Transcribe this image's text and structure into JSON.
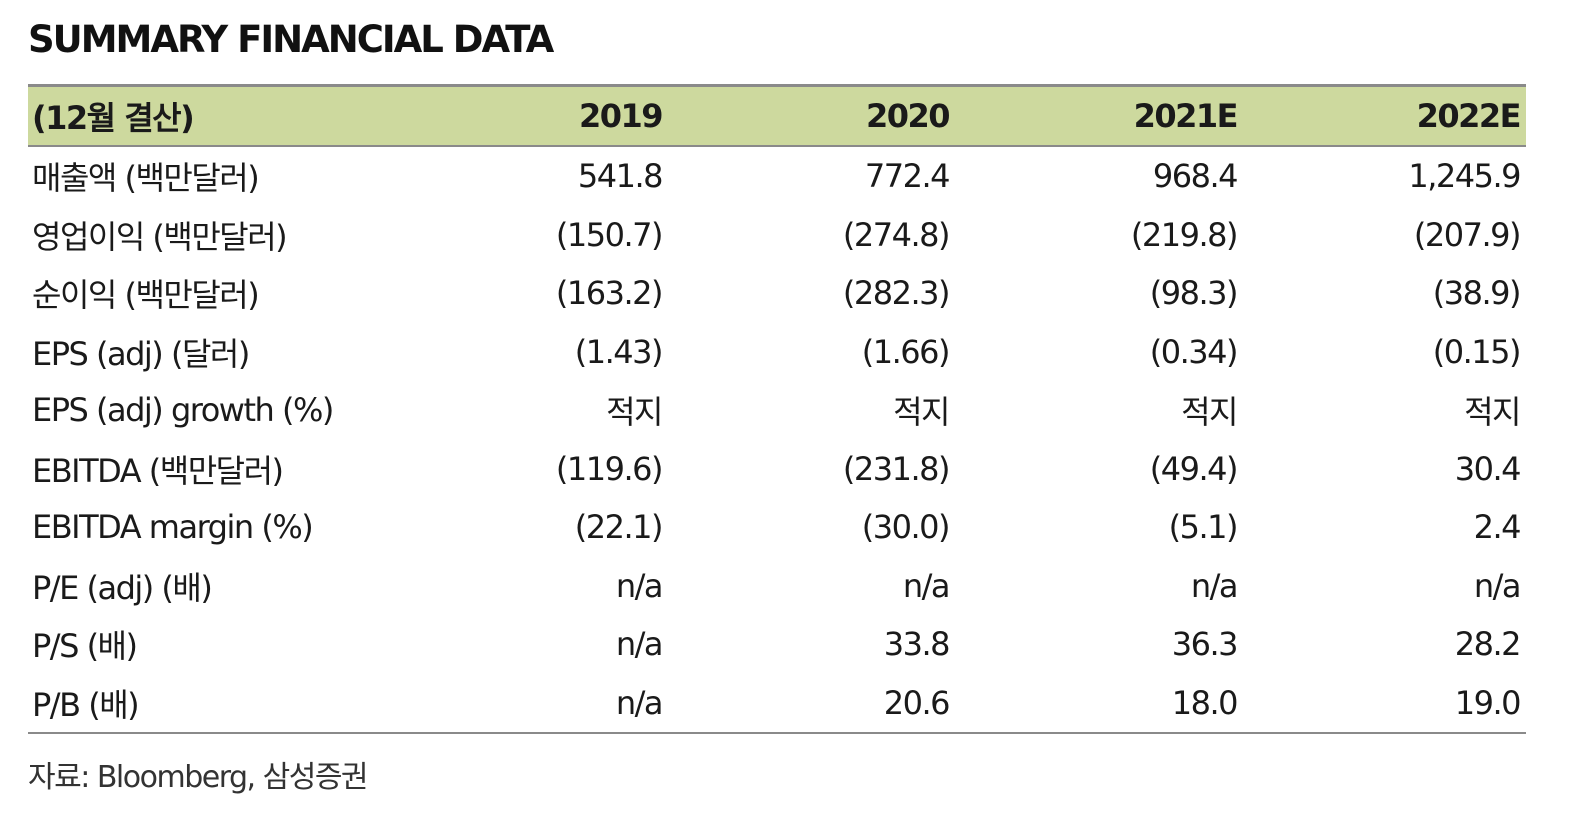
{
  "title": "SUMMARY FINANCIAL DATA",
  "table": {
    "columns": [
      "(12월 결산)",
      "2019",
      "2020",
      "2021E",
      "2022E"
    ],
    "rows": [
      {
        "label": "매출액 (백만달러)",
        "values": [
          "541.8",
          "772.4",
          "968.4",
          "1,245.9"
        ]
      },
      {
        "label": "영업이익 (백만달러)",
        "values": [
          "(150.7)",
          "(274.8)",
          "(219.8)",
          "(207.9)"
        ]
      },
      {
        "label": "순이익 (백만달러)",
        "values": [
          "(163.2)",
          "(282.3)",
          "(98.3)",
          "(38.9)"
        ]
      },
      {
        "label": "EPS (adj) (달러)",
        "values": [
          "(1.43)",
          "(1.66)",
          "(0.34)",
          "(0.15)"
        ]
      },
      {
        "label": "EPS (adj) growth (%)",
        "values": [
          "적지",
          "적지",
          "적지",
          "적지"
        ]
      },
      {
        "label": "EBITDA (백만달러)",
        "values": [
          "(119.6)",
          "(231.8)",
          "(49.4)",
          "30.4"
        ]
      },
      {
        "label": "EBITDA margin (%)",
        "values": [
          "(22.1)",
          "(30.0)",
          "(5.1)",
          "2.4"
        ]
      },
      {
        "label": "P/E (adj) (배)",
        "values": [
          "n/a",
          "n/a",
          "n/a",
          "n/a"
        ]
      },
      {
        "label": "P/S (배)",
        "values": [
          "n/a",
          "33.8",
          "36.3",
          "28.2"
        ]
      },
      {
        "label": "P/B (배)",
        "values": [
          "n/a",
          "20.6",
          "18.0",
          "19.0"
        ]
      }
    ]
  },
  "source": "자료: Bloomberg, 삼성증권",
  "colors": {
    "header_bg": "#cdd99e",
    "rule": "#8a8a8a"
  }
}
